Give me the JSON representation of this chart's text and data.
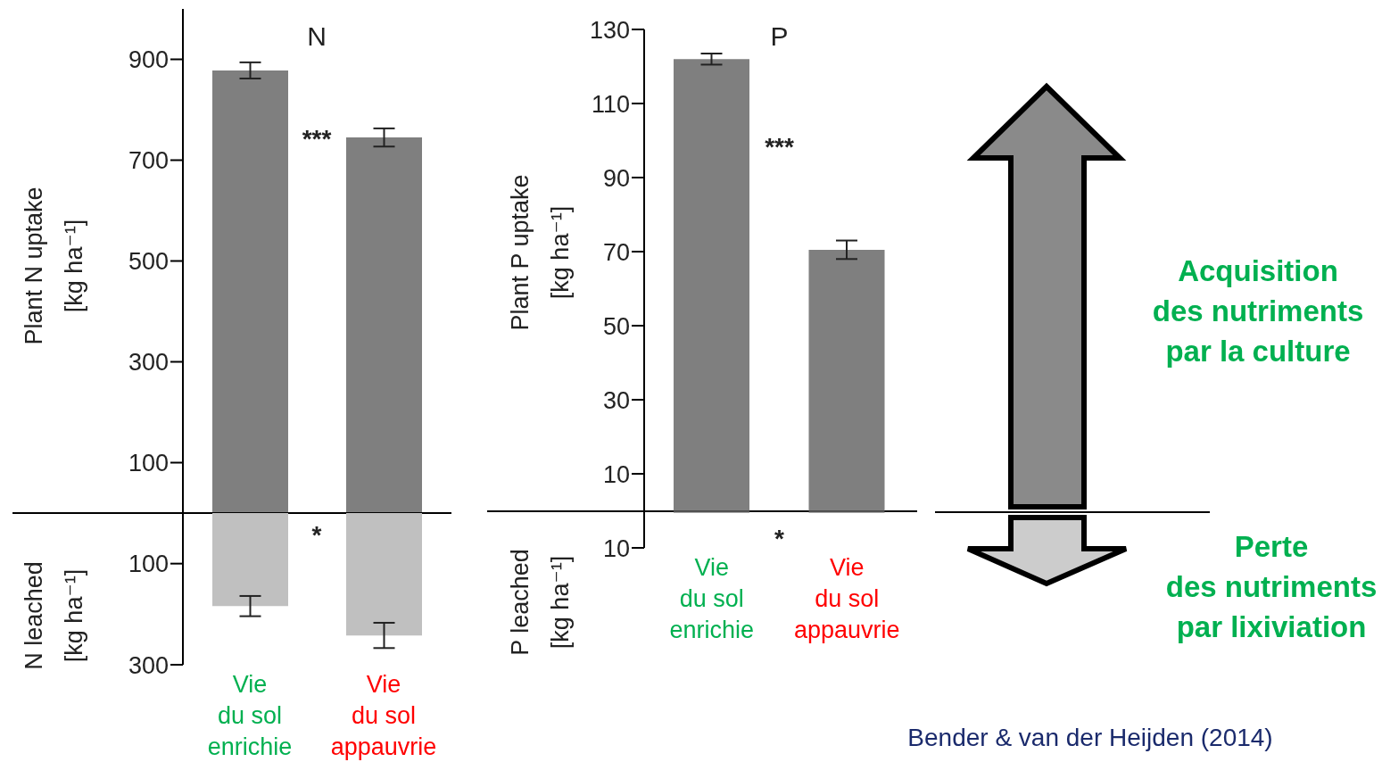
{
  "chart_data": [
    {
      "type": "bar",
      "title": "N",
      "ylabel": "Plant N uptake [kg ha⁻¹]",
      "categories": [
        null,
        null
      ],
      "values": [
        878,
        745
      ],
      "errors": [
        16,
        18
      ],
      "color": "#7f7f7f",
      "ylim": [
        0,
        1000
      ],
      "yticks": [
        100,
        300,
        500,
        700,
        900
      ],
      "tick_labels": "y",
      "annotations": [
        "***"
      ]
    },
    {
      "type": "bar",
      "ylabel": "N leached [kg ha⁻¹]",
      "categories": [
        "Vie\ndu sol\nenrichie",
        "Vie\ndu sol\nappauvrie"
      ],
      "values": [
        184,
        242
      ],
      "errors": [
        20,
        25
      ],
      "color": "#c0c0c0",
      "ylim": [
        300,
        0
      ],
      "yticks": [
        100,
        300
      ],
      "annotations": [
        "*"
      ]
    },
    {
      "type": "bar",
      "title": "P",
      "ylabel": "Plant P uptake [kg ha⁻¹]",
      "y2label": "P leached [kg ha⁻¹]",
      "categories": [
        "Vie\ndu sol\nenrichie",
        "Vie\ndu sol\nappauvrie"
      ],
      "stacked": true,
      "series": [
        {
          "color": "#7f7f7f",
          "values": [
            122,
            70.5
          ],
          "errors": [
            1.5,
            2.5
          ]
        },
        {
          "color": "#555555",
          "values": [
            -0.5,
            -0.5
          ]
        }
      ],
      "ylim": [
        -10,
        130
      ],
      "yticks": [
        {
          "value": -10,
          "label": "10"
        },
        10,
        30,
        50,
        70,
        90,
        110,
        130
      ],
      "annotations": [
        "***",
        "*"
      ]
    },
    {
      "type": "other",
      "annotations": [
        "Acquisition\ndes nutriments\npar la culture",
        "Perte\ndes nutriments\npar lixiviation",
        "Bender & van der Heijden (2014)"
      ]
    }
  ]
}
